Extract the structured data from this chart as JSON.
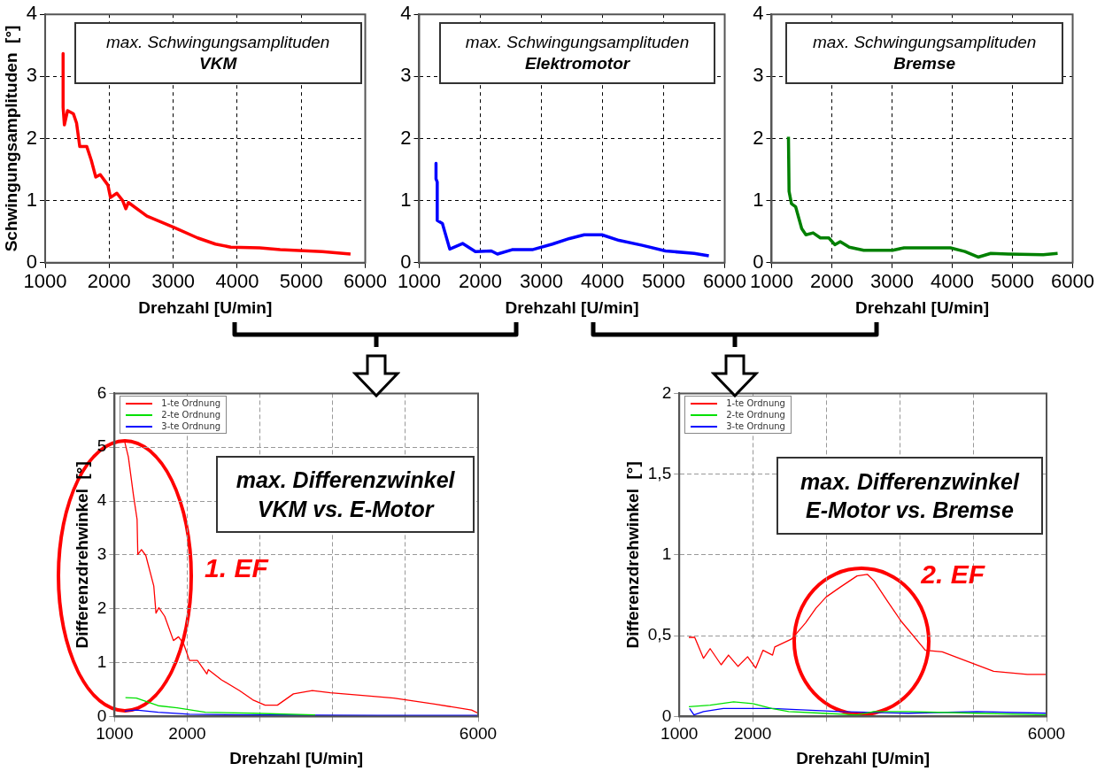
{
  "chart_data": [
    {
      "type": "line",
      "xlabel": "Drehzahl [U/min]",
      "ylabel": "Schwingungsamplituden  [°]",
      "annotations": [
        "max. Schwingungsamplituden",
        "VKM"
      ],
      "xlim": [
        1000,
        6000
      ],
      "xticks": [
        1000,
        2000,
        3000,
        4000,
        5000,
        6000
      ],
      "ylim": [
        0,
        4
      ],
      "yticks": [
        0,
        1,
        2,
        3,
        4
      ],
      "grid": true,
      "marker": "none",
      "line_style": "solid",
      "series": [
        {
          "color": "#ff0000",
          "x": [
            1280,
            1280,
            1300,
            1350,
            1440,
            1490,
            1540,
            1650,
            1720,
            1790,
            1860,
            1980,
            2020,
            2120,
            2210,
            2260,
            2300,
            2590,
            3010,
            3380,
            3660,
            3900,
            4350,
            4670,
            5330,
            5770
          ],
          "values": [
            3.37,
            2.5,
            2.22,
            2.45,
            2.4,
            2.25,
            1.87,
            1.87,
            1.65,
            1.38,
            1.42,
            1.25,
            1.05,
            1.12,
            1.0,
            0.87,
            0.97,
            0.75,
            0.57,
            0.4,
            0.3,
            0.25,
            0.24,
            0.21,
            0.18,
            0.14
          ]
        }
      ]
    },
    {
      "type": "line",
      "xlabel": "Drehzahl [U/min]",
      "annotations": [
        "max. Schwingungsamplituden",
        "Elektromotor"
      ],
      "xlim": [
        1000,
        6000
      ],
      "xticks": [
        1000,
        2000,
        3000,
        4000,
        5000,
        6000
      ],
      "ylim": [
        0,
        4
      ],
      "yticks": [
        0,
        1,
        2,
        3,
        4
      ],
      "grid": true,
      "marker": "none",
      "line_style": "solid",
      "series": [
        {
          "color": "#0000ff",
          "x": [
            1275,
            1275,
            1295,
            1295,
            1380,
            1500,
            1710,
            1920,
            2180,
            2280,
            2520,
            2850,
            3180,
            3460,
            3700,
            3990,
            4270,
            4650,
            5030,
            5500,
            5740
          ],
          "values": [
            1.6,
            1.35,
            1.3,
            0.68,
            0.63,
            0.22,
            0.31,
            0.18,
            0.19,
            0.14,
            0.21,
            0.21,
            0.3,
            0.39,
            0.45,
            0.45,
            0.36,
            0.28,
            0.19,
            0.15,
            0.11
          ]
        }
      ]
    },
    {
      "type": "line",
      "xlabel": "Drehzahl [U/min]",
      "annotations": [
        "max. Schwingungsamplituden",
        "Bremse"
      ],
      "xlim": [
        1000,
        6000
      ],
      "xticks": [
        1000,
        2000,
        3000,
        4000,
        5000,
        6000
      ],
      "ylim": [
        0,
        4
      ],
      "yticks": [
        0,
        1,
        2,
        3,
        4
      ],
      "grid": true,
      "marker": "none",
      "line_style": "solid",
      "series": [
        {
          "color": "#008000",
          "x": [
            1280,
            1290,
            1330,
            1400,
            1500,
            1570,
            1690,
            1810,
            1950,
            2050,
            2140,
            2290,
            2530,
            3010,
            3200,
            3970,
            4210,
            4430,
            4640,
            4930,
            5510,
            5750
          ],
          "values": [
            2.03,
            1.15,
            0.95,
            0.9,
            0.55,
            0.45,
            0.48,
            0.4,
            0.4,
            0.29,
            0.34,
            0.25,
            0.2,
            0.2,
            0.24,
            0.24,
            0.18,
            0.09,
            0.15,
            0.14,
            0.13,
            0.15
          ]
        }
      ]
    },
    {
      "type": "line",
      "xlabel": "Drehzahl [U/min]",
      "ylabel": "Differenzdrehwinkel  [°]",
      "annotations": [
        "max. Differenzwinkel",
        "VKM vs. E-Motor",
        "1. EF"
      ],
      "xlim": [
        1000,
        6000
      ],
      "xticks": [
        1000,
        2000,
        {
          "value": 3000,
          "label": null
        },
        {
          "value": 4000,
          "label": null
        },
        {
          "value": 5000,
          "label": null
        },
        6000
      ],
      "ylim": [
        0,
        6
      ],
      "yticks": [
        0,
        1,
        2,
        3,
        4,
        5,
        6
      ],
      "grid": true,
      "legend": "top left",
      "marker": "none",
      "line_style": "solid",
      "series": [
        {
          "name": "1-te Ordnung",
          "color": "#ff0000",
          "x": [
            1140,
            1190,
            1260,
            1310,
            1320,
            1370,
            1430,
            1540,
            1570,
            1610,
            1690,
            1810,
            1880,
            1950,
            2030,
            2140,
            2270,
            2290,
            2470,
            2720,
            2900,
            3070,
            3240,
            3460,
            3720,
            3970,
            4410,
            4840,
            5400,
            5910,
            6000
          ],
          "values": [
            5.1,
            4.82,
            4.11,
            3.66,
            3.01,
            3.1,
            2.99,
            2.42,
            1.92,
            2.02,
            1.86,
            1.41,
            1.48,
            1.35,
            1.04,
            1.04,
            0.79,
            0.87,
            0.68,
            0.48,
            0.31,
            0.21,
            0.21,
            0.42,
            0.48,
            0.44,
            0.39,
            0.34,
            0.23,
            0.12,
            0.06
          ]
        },
        {
          "name": "2-te Ordnung",
          "color": "#00e000",
          "x": [
            1150,
            1300,
            1600,
            1860,
            2250,
            2900,
            3760
          ],
          "values": [
            0.35,
            0.34,
            0.2,
            0.16,
            0.08,
            0.06,
            0.03
          ]
        },
        {
          "name": "3-te Ordnung",
          "color": "#0000ff",
          "x": [
            1140,
            1300,
            1600,
            2030,
            2900,
            4620,
            6000
          ],
          "values": [
            0.1,
            0.12,
            0.08,
            0.04,
            0.03,
            0.02,
            0.02
          ]
        }
      ]
    },
    {
      "type": "line",
      "xlabel": "Drehzahl [U/min]",
      "ylabel": "Differenzdrehwinkel  [°]",
      "annotations": [
        "max. Differenzwinkel",
        "E-Motor vs. Bremse",
        "2. EF"
      ],
      "xlim": [
        1000,
        6000
      ],
      "xticks": [
        1000,
        2000,
        {
          "value": 3000,
          "label": null
        },
        {
          "value": 4000,
          "label": null
        },
        {
          "value": 5000,
          "label": null
        },
        6000
      ],
      "ylim": [
        0,
        2
      ],
      "yticks": [
        0,
        {
          "value": 0.5,
          "label": "0,5"
        },
        1,
        {
          "value": 1.5,
          "label": "1,5"
        },
        2
      ],
      "grid": true,
      "legend": "top left",
      "marker": "none",
      "line_style": "solid",
      "series": [
        {
          "name": "1-te Ordnung",
          "color": "#ff0000",
          "x": [
            1130,
            1210,
            1330,
            1420,
            1570,
            1670,
            1800,
            1930,
            2040,
            2140,
            2270,
            2300,
            2530,
            2720,
            2860,
            3000,
            3190,
            3420,
            3560,
            3650,
            3840,
            4020,
            4350,
            4580,
            4810,
            5280,
            5740,
            6000
          ],
          "values": [
            0.49,
            0.49,
            0.36,
            0.42,
            0.32,
            0.38,
            0.31,
            0.37,
            0.3,
            0.41,
            0.38,
            0.43,
            0.48,
            0.58,
            0.67,
            0.74,
            0.8,
            0.87,
            0.88,
            0.84,
            0.71,
            0.59,
            0.41,
            0.4,
            0.36,
            0.28,
            0.26,
            0.26
          ]
        },
        {
          "name": "2-te Ordnung",
          "color": "#00e000",
          "x": [
            1130,
            1420,
            1740,
            2000,
            2260,
            2490,
            2950,
            3420,
            3650,
            4120,
            5050,
            6000
          ],
          "values": [
            0.06,
            0.07,
            0.09,
            0.08,
            0.05,
            0.03,
            0.02,
            0.01,
            0.03,
            0.03,
            0.02,
            0.01
          ]
        },
        {
          "name": "3-te Ordnung",
          "color": "#0000ff",
          "x": [
            1140,
            1200,
            1330,
            1600,
            2260,
            3190,
            4120,
            5050,
            6000
          ],
          "values": [
            0.05,
            0.01,
            0.03,
            0.05,
            0.05,
            0.03,
            0.02,
            0.03,
            0.02
          ]
        }
      ]
    }
  ]
}
